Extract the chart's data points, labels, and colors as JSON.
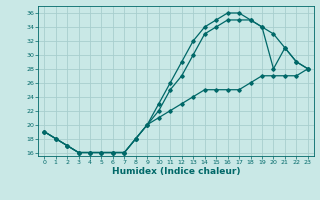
{
  "xlabel": "Humidex (Indice chaleur)",
  "bg_color": "#c9e8e6",
  "grid_color": "#a8cece",
  "line_color": "#006868",
  "xlim": [
    -0.5,
    23.5
  ],
  "ylim": [
    15.5,
    37
  ],
  "xticks": [
    0,
    1,
    2,
    3,
    4,
    5,
    6,
    7,
    8,
    9,
    10,
    11,
    12,
    13,
    14,
    15,
    16,
    17,
    18,
    19,
    20,
    21,
    22,
    23
  ],
  "yticks": [
    16,
    18,
    20,
    22,
    24,
    26,
    28,
    30,
    32,
    34,
    36
  ],
  "c1x": [
    0,
    1,
    2,
    3,
    4,
    5,
    6,
    7,
    8,
    9,
    10,
    11,
    12,
    13,
    14,
    15,
    16,
    17,
    18,
    19,
    20,
    21,
    22,
    23
  ],
  "c1y": [
    19,
    18,
    17,
    16,
    16,
    16,
    16,
    16,
    18,
    20,
    23,
    26,
    29,
    32,
    34,
    35,
    36,
    36,
    35,
    34,
    28,
    31,
    29,
    28
  ],
  "c2x": [
    0,
    1,
    2,
    3,
    4,
    5,
    6,
    7,
    8,
    9,
    10,
    11,
    12,
    13,
    14,
    15,
    16,
    17,
    18,
    19,
    20,
    21,
    22,
    23
  ],
  "c2y": [
    19,
    18,
    17,
    16,
    16,
    16,
    16,
    16,
    18,
    20,
    22,
    25,
    27,
    30,
    33,
    34,
    35,
    35,
    35,
    34,
    33,
    31,
    29,
    28
  ],
  "c3x": [
    0,
    1,
    2,
    3,
    4,
    5,
    6,
    7,
    8,
    9,
    10,
    11,
    12,
    13,
    14,
    15,
    16,
    17,
    18,
    19,
    20,
    21,
    22,
    23
  ],
  "c3y": [
    19,
    18,
    17,
    16,
    16,
    16,
    16,
    16,
    18,
    20,
    21,
    22,
    23,
    24,
    25,
    25,
    25,
    25,
    26,
    27,
    27,
    27,
    27,
    28
  ]
}
